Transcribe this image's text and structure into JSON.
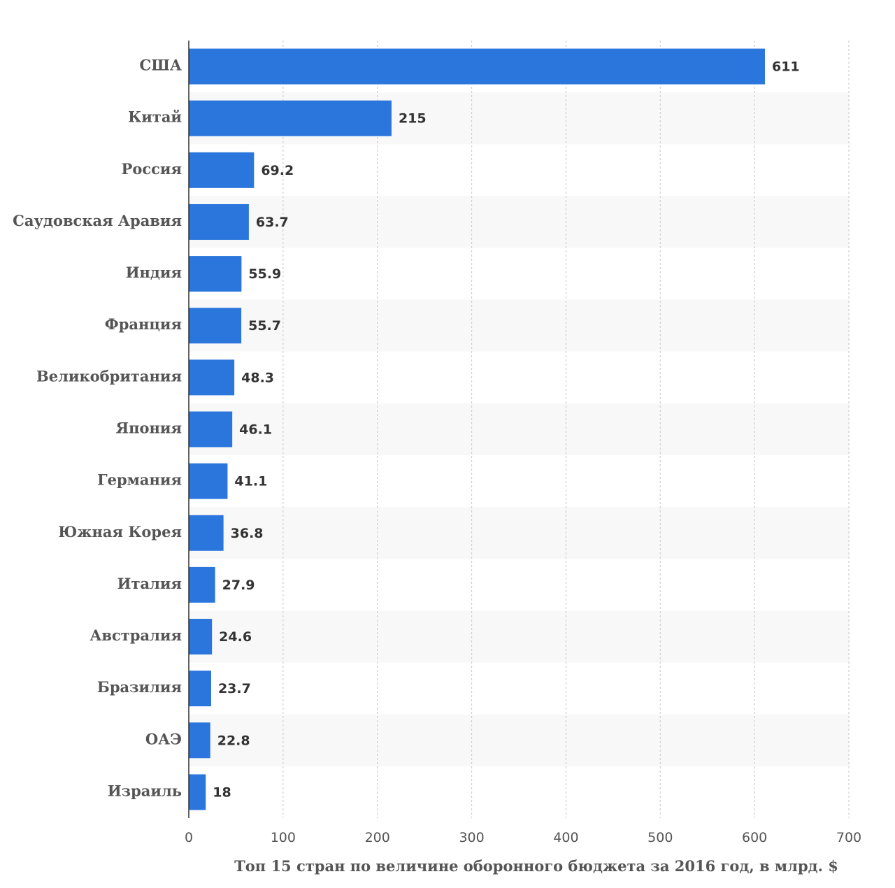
{
  "chart_data": {
    "type": "bar",
    "orientation": "horizontal",
    "categories": [
      "США",
      "Китай",
      "Россия",
      "Саудовская Аравия",
      "Индия",
      "Франция",
      "Великобритания",
      "Япония",
      "Германия",
      "Южная Корея",
      "Италия",
      "Австралия",
      "Бразилия",
      "ОАЭ",
      "Израиль"
    ],
    "values": [
      611,
      215,
      69.2,
      63.7,
      55.9,
      55.7,
      48.3,
      46.1,
      41.1,
      36.8,
      27.9,
      24.6,
      23.7,
      22.8,
      18
    ],
    "value_labels": [
      "611",
      "215",
      "69.2",
      "63.7",
      "55.9",
      "55.7",
      "48.3",
      "46.1",
      "41.1",
      "36.8",
      "27.9",
      "24.6",
      "23.7",
      "22.8",
      "18"
    ],
    "xlabel": "Топ 15 стран по величине оборонного бюджета за 2016 год, в млрд. $",
    "xlim": [
      0,
      700
    ],
    "xticks": [
      0,
      100,
      200,
      300,
      400,
      500,
      600,
      700
    ],
    "xtick_labels": [
      "0",
      "100",
      "200",
      "300",
      "400",
      "500",
      "600",
      "700"
    ],
    "grid": true,
    "bar_color": "#2a76dd",
    "band_color": "#f8f8f8"
  }
}
